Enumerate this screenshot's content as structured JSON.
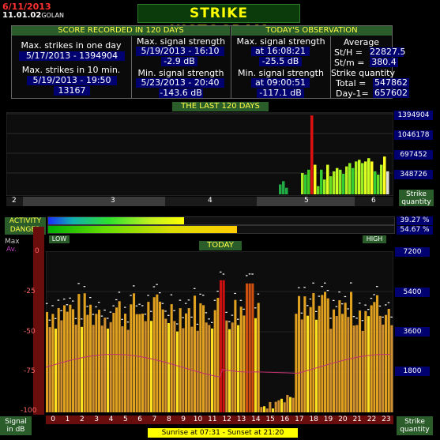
{
  "header": {
    "date": "6/11/2013",
    "version": "11.01.02",
    "station": "GOLAN",
    "title": "STRIKE HISTOGRAM"
  },
  "score": {
    "section_title": "SCORE RECORDED IN 120 DAYS",
    "max_one_day_label": "Max. strikes in one day",
    "max_one_day_value": "5/17/2013 - 1394904",
    "max_10min_label": "Max. strikes in 10 min.",
    "max_10min_date": "5/19/2013 - 19:50",
    "max_10min_value": "13167",
    "max_signal_label": "Max. signal strength",
    "max_signal_date": "5/19/2013 - 16:10",
    "max_signal_value": "-2.9 dB",
    "min_signal_label": "Min. signal strength",
    "min_signal_date": "5/23/2013 - 20:40",
    "min_signal_value": "-143.6 dB"
  },
  "today_obs": {
    "section_title": "TODAY'S OBSERVATION",
    "max_signal_label": "Max. signal strength",
    "max_signal_time": "at 16:08:21",
    "max_signal_value": "-25.5 dB",
    "min_signal_label": "Min. signal strength",
    "min_signal_time": "at 09:00:51",
    "min_signal_value": "-117.1 dB",
    "average_label": "Average",
    "sth_label": "St/H =",
    "sth_value": "22827.5",
    "stm_label": "St/m =",
    "stm_value": "380.4",
    "quantity_label": "Strike quantity",
    "total_label": "Total =",
    "total_value": "547862",
    "day1_label": "Day-1=",
    "day1_value": "657602"
  },
  "last120": {
    "title": "THE LAST 120 DAYS",
    "ticks": [
      "1394904",
      "1046178",
      "697452",
      "348726"
    ],
    "months": [
      "2",
      "3",
      "4",
      "5",
      "6"
    ],
    "quantity_label_1": "Strike",
    "quantity_label_2": "quantity"
  },
  "activity": {
    "activity_label": "ACTIVITY",
    "danger_label": "DANGER",
    "activity_pct": "39.27 %",
    "danger_pct": "54.67 %",
    "activity_level": 0.3927,
    "danger_level": 0.5467,
    "low_label": "LOW",
    "high_label": "HIGH"
  },
  "today": {
    "title": "TODAY",
    "max_label": "Max",
    "av_label": "Av.",
    "db_ticks": [
      "0",
      "-25",
      "-50",
      "-75",
      "-100"
    ],
    "qty_ticks": [
      "7200",
      "5400",
      "3600",
      "1800"
    ],
    "hours": [
      "0",
      "1",
      "2",
      "3",
      "4",
      "5",
      "6",
      "7",
      "8",
      "9",
      "10",
      "11",
      "12",
      "13",
      "14",
      "15",
      "16",
      "17",
      "18",
      "19",
      "20",
      "21",
      "22",
      "23"
    ],
    "signal_label_1": "Signal",
    "signal_label_2": "in dB",
    "quantity_label_1": "Strike",
    "quantity_label_2": "quantity",
    "sunrise": "Sunrise at 07:31",
    "sunset": "Sunset at 21:20"
  },
  "colors": {
    "accent_yellow": "#ffff00",
    "header_green": "#2b5d2b",
    "value_blue": "#000070",
    "dark_red": "#6a0d0d"
  }
}
